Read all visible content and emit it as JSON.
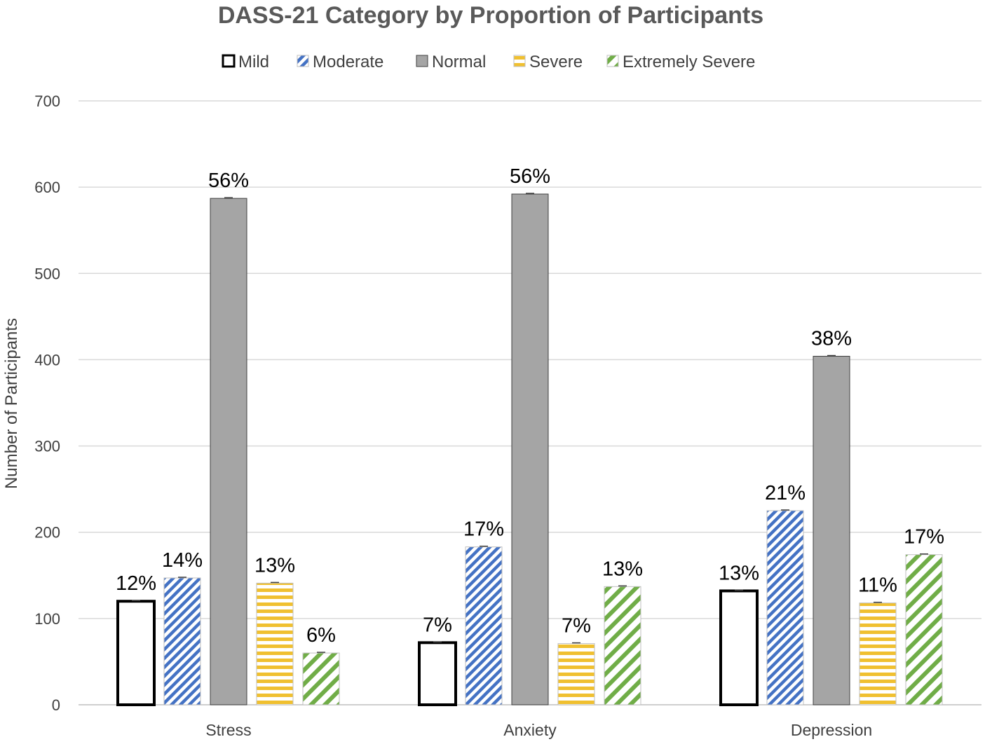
{
  "chart_data": {
    "type": "bar",
    "title": "DASS-21 Category by Proportion of Participants",
    "xlabel": "",
    "ylabel": "Number of Participants",
    "ylim": [
      0,
      700
    ],
    "yticks": [
      0,
      100,
      200,
      300,
      400,
      500,
      600,
      700
    ],
    "grid": true,
    "legend_position": "top",
    "categories": [
      "Stress",
      "Anxiety",
      "Depression"
    ],
    "series": [
      {
        "name": "Mild",
        "pattern": "solid-outline",
        "color": "#000000",
        "values": [
          120,
          72,
          132
        ],
        "labels": [
          "12%",
          "7%",
          "13%"
        ]
      },
      {
        "name": "Moderate",
        "pattern": "diagonal-stripes",
        "color": "#4472C4",
        "values": [
          147,
          183,
          225
        ],
        "labels": [
          "14%",
          "17%",
          "21%"
        ]
      },
      {
        "name": "Normal",
        "pattern": "solid",
        "color": "#A5A5A5",
        "values": [
          587,
          592,
          404
        ],
        "labels": [
          "56%",
          "56%",
          "38%"
        ]
      },
      {
        "name": "Severe",
        "pattern": "horizontal-stripes",
        "color": "#F0C030",
        "values": [
          141,
          71,
          118
        ],
        "labels": [
          "13%",
          "7%",
          "11%"
        ]
      },
      {
        "name": "Extremely Severe",
        "pattern": "wide-diagonal-stripes",
        "color": "#70AD47",
        "values": [
          60,
          137,
          174
        ],
        "labels": [
          "6%",
          "13%",
          "17%"
        ]
      }
    ]
  }
}
